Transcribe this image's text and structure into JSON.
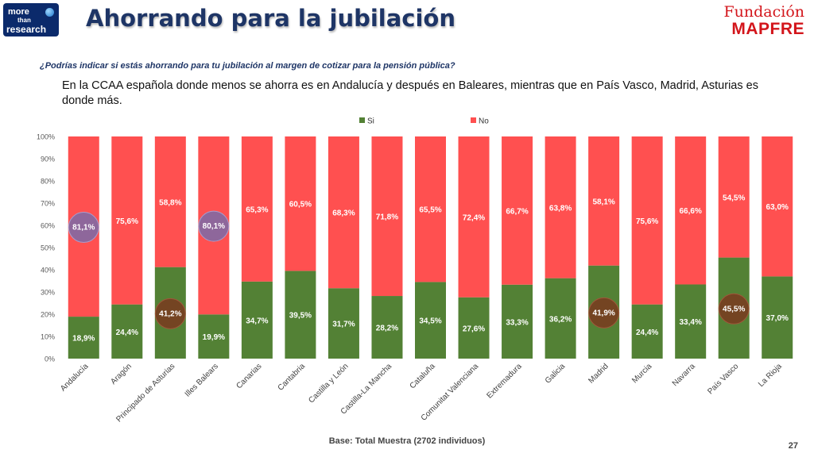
{
  "header": {
    "logo_line1": "more",
    "logo_line2": "than",
    "logo_line3": "research",
    "title": "Ahorrando para la jubilación",
    "brand_line1": "Fundación",
    "brand_line2": "MAPFRE"
  },
  "question": "¿Podrías indicar si estás ahorrando para tu jubilación al margen de cotizar para la pensión pública?",
  "summary": "En la CCAA española donde menos se ahorra es en Andalucía y después en Baleares, mientras que en País Vasco, Madrid, Asturias es donde más.",
  "footer": {
    "base": "Base: Total Muestra (2702 individuos)",
    "page": "27"
  },
  "colors": {
    "si": "#538135",
    "no": "#ff5050",
    "title": "#1e3566",
    "highlight_low": "#7a6ba8",
    "highlight_high": "#7a3a1e"
  },
  "chart_data": {
    "type": "bar",
    "stacked": true,
    "percent_stacked": true,
    "categories": [
      "Andalucía",
      "Aragón",
      "Principado de Asturias",
      "Illes Balears",
      "Canarias",
      "Cantabria",
      "Castilla y León",
      "Castilla-La Mancha",
      "Cataluña",
      "Comunitat Valenciana",
      "Extremadura",
      "Galicia",
      "Madrid",
      "Murcia",
      "Navarra",
      "País Vasco",
      "La Rioja"
    ],
    "series": [
      {
        "name": "Si",
        "values": [
          18.9,
          24.4,
          41.2,
          19.9,
          34.7,
          39.5,
          31.7,
          28.2,
          34.5,
          27.6,
          33.3,
          36.2,
          41.9,
          24.4,
          33.4,
          45.5,
          37.0
        ]
      },
      {
        "name": "No",
        "values": [
          81.1,
          75.6,
          58.8,
          80.1,
          65.3,
          60.5,
          68.3,
          71.8,
          65.5,
          72.4,
          66.7,
          63.8,
          58.1,
          75.6,
          66.6,
          54.5,
          63.0
        ]
      }
    ],
    "data_labels_si": [
      "18,9%",
      "24,4%",
      "41,2%",
      "19,9%",
      "34,7%",
      "39,5%",
      "31,7%",
      "28,2%",
      "34,5%",
      "27,6%",
      "33,3%",
      "36,2%",
      "41,9%",
      "24,4%",
      "33,4%",
      "45,5%",
      "37,0%"
    ],
    "data_labels_no": [
      "81,1%",
      "75,6%",
      "58,8%",
      "80,1%",
      "65,3%",
      "60,5%",
      "68,3%",
      "71,8%",
      "65,5%",
      "72,4%",
      "66,7%",
      "63,8%",
      "58,1%",
      "75,6%",
      "66,6%",
      "54,5%",
      "63,0%"
    ],
    "highlight_no": [
      0,
      3
    ],
    "highlight_si": [
      2,
      12,
      15
    ],
    "y_ticks": [
      "0%",
      "10%",
      "20%",
      "30%",
      "40%",
      "50%",
      "60%",
      "70%",
      "80%",
      "90%",
      "100%"
    ],
    "ylim": [
      0,
      100
    ],
    "legend": "top",
    "grid": false
  }
}
